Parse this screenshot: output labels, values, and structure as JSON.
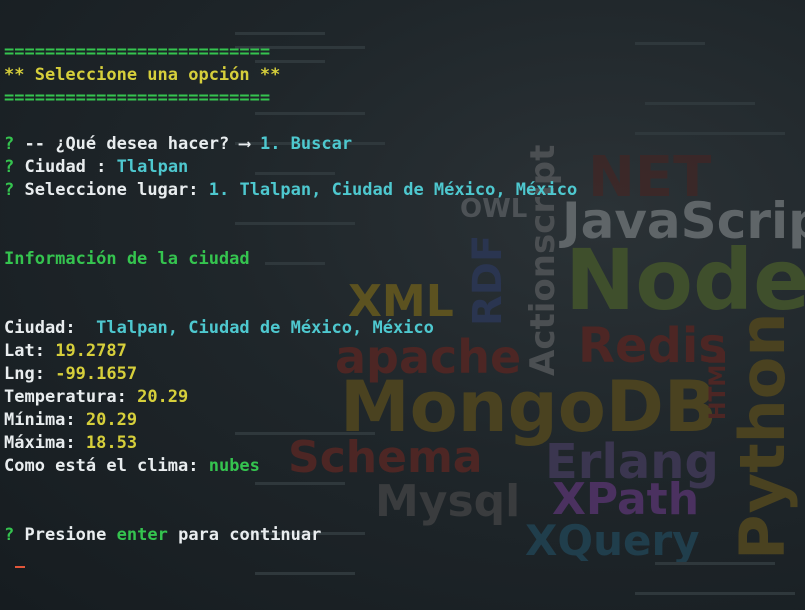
{
  "header": {
    "rule_top": "==========================",
    "title": "** Seleccione una opción **",
    "rule_bottom": "=========================="
  },
  "prompts": {
    "action": {
      "marker": "?",
      "question": "-- ¿Qué desea hacer?",
      "arrow": "⟶",
      "answer": "1. Buscar"
    },
    "city": {
      "marker": "?",
      "question": "Ciudad :",
      "answer": "Tlalpan"
    },
    "place": {
      "marker": "?",
      "question": "Seleccione lugar:",
      "answer": "1. Tlalpan, Ciudad de México, México"
    }
  },
  "info": {
    "heading": "Información de la ciudad",
    "city_label": "Ciudad:",
    "city_value": "Tlalpan, Ciudad de México, México",
    "lat_label": "Lat:",
    "lat_value": "19.2787",
    "lng_label": "Lng:",
    "lng_value": "-99.1657",
    "temp_label": "Temperatura:",
    "temp_value": "20.29",
    "min_label": "Mínima:",
    "min_value": "20.29",
    "max_label": "Máxima:",
    "max_value": "18.53",
    "weather_label": "Como está el clima:",
    "weather_value": "nubes"
  },
  "continue_prompt": {
    "marker": "?",
    "before": "Presione",
    "key": "enter",
    "after": "para continuar"
  },
  "background_words": [
    "JavaScript",
    "Node.",
    "MongoDB",
    "Python",
    "apache",
    "XML",
    "Redis",
    "Erlang",
    "XPath",
    "XQuery",
    "Schema",
    "Mysql",
    "RDF",
    "Actionscript",
    "OWL",
    "HTML",
    "NET"
  ],
  "colors": {
    "prompt_marker": "#35c44f",
    "answer": "#4ec8cf",
    "value": "#d6cf3b",
    "header": "#d6cf3b"
  }
}
